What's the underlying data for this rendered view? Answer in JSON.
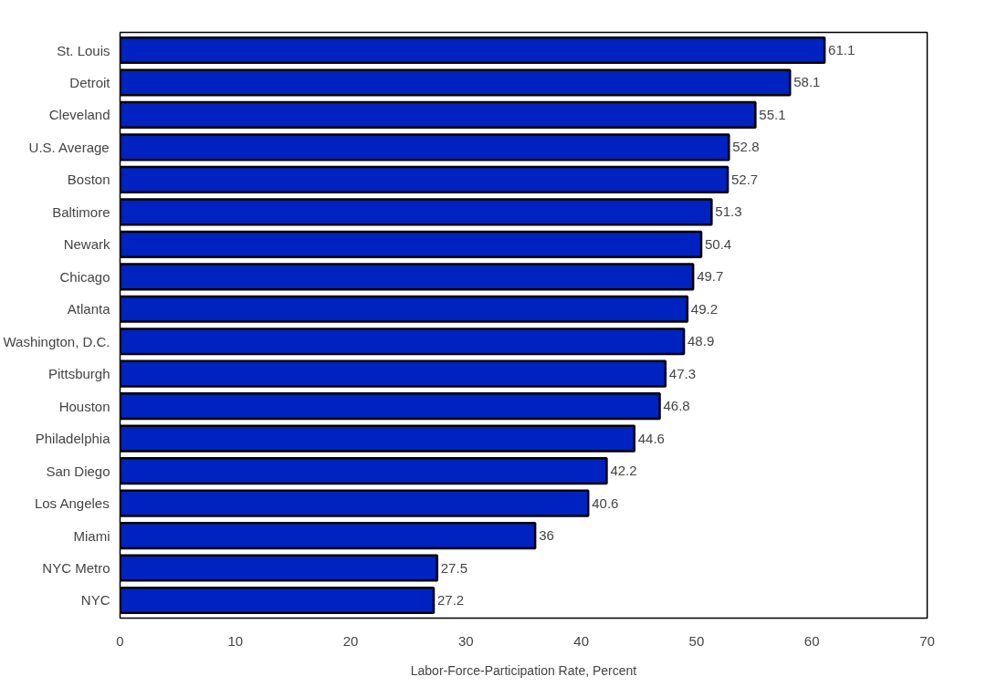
{
  "chart_data": {
    "type": "bar",
    "orientation": "horizontal",
    "xlabel": "Labor-Force-Participation Rate, Percent",
    "categories": [
      "St. Louis",
      "Detroit",
      "Cleveland",
      "U.S. Average",
      "Boston",
      "Baltimore",
      "Newark",
      "Chicago",
      "Atlanta",
      "Washington, D.C.",
      "Pittsburgh",
      "Houston",
      "Philadelphia",
      "San Diego",
      "Los Angeles",
      "Miami",
      "NYC Metro",
      "NYC"
    ],
    "values": [
      61.1,
      58.1,
      55.1,
      52.8,
      52.7,
      51.3,
      50.4,
      49.7,
      49.2,
      48.9,
      47.3,
      46.8,
      44.6,
      42.2,
      40.6,
      36,
      27.5,
      27.2
    ],
    "color": "#0022c0",
    "xlim": [
      0,
      70
    ],
    "xticks": [
      0,
      10,
      20,
      30,
      40,
      50,
      60,
      70
    ],
    "data_labels": true,
    "grid": false
  }
}
